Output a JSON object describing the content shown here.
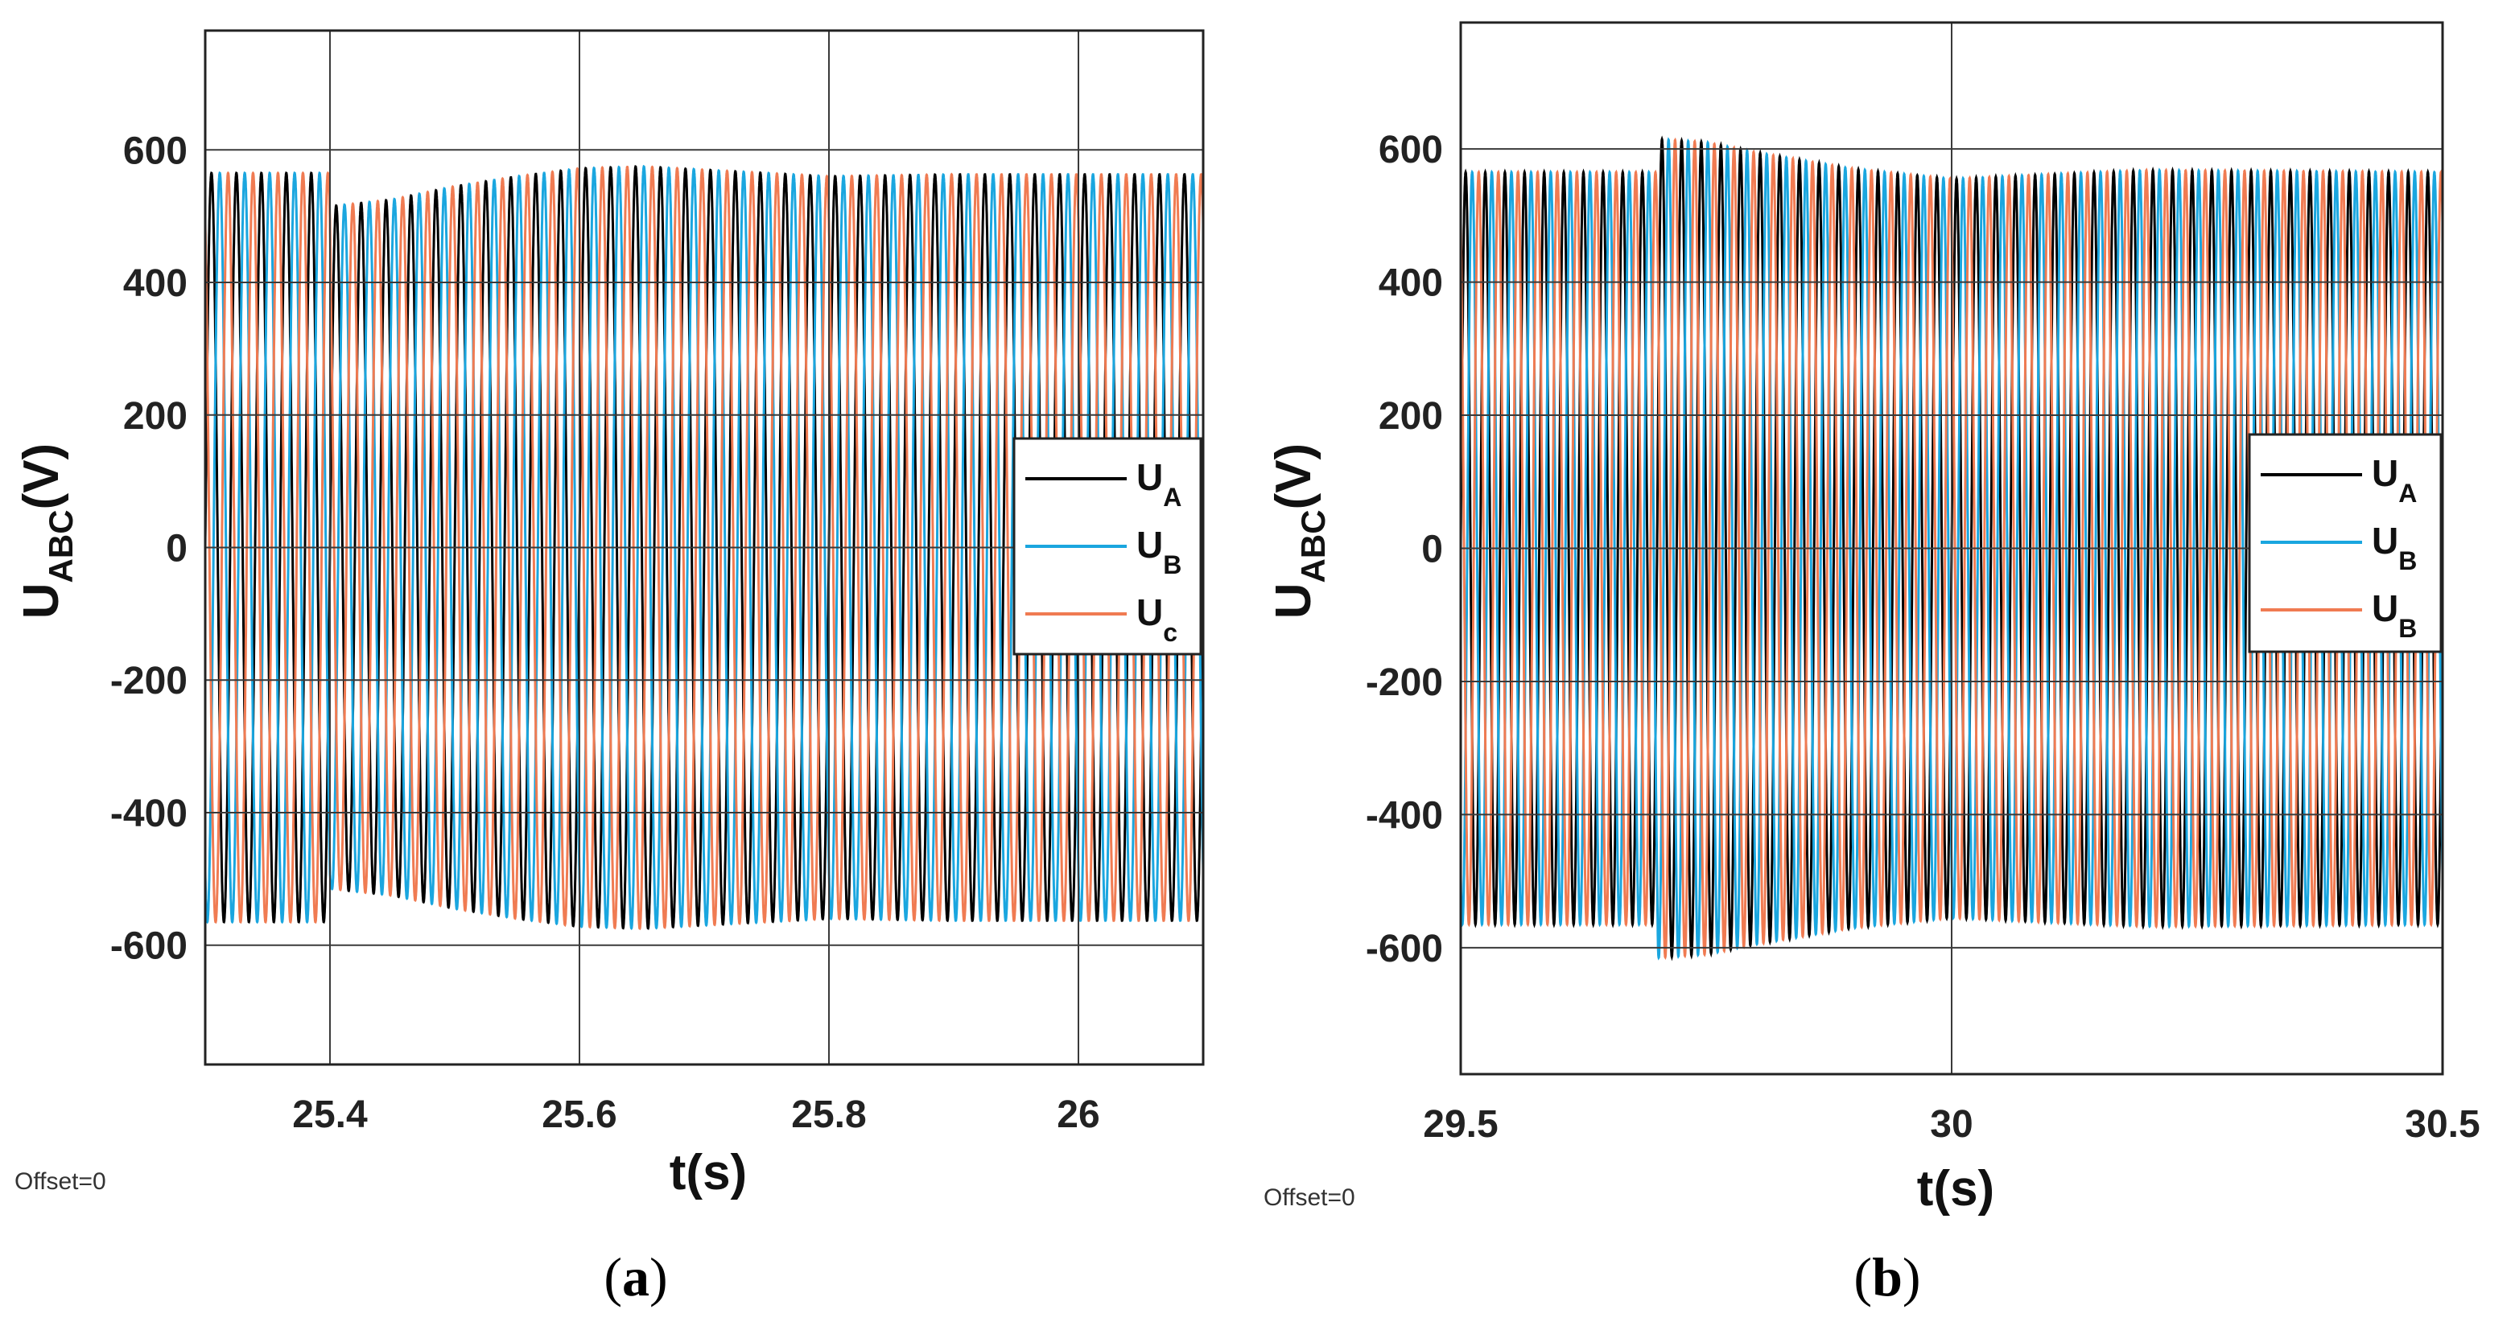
{
  "chart_data": [
    {
      "type": "line",
      "panel": "a",
      "title": "",
      "xlabel": "t(s)",
      "ylabel": "U",
      "ylabel_sub": "ABC",
      "ylabel_unit": "(V)",
      "xlim": [
        25.3,
        26.1
      ],
      "ylim": [
        -780,
        780
      ],
      "xticks": [
        25.4,
        25.6,
        25.8,
        26
      ],
      "xtick_labels": [
        "25.4",
        "25.6",
        "25.8",
        "26"
      ],
      "yticks": [
        -600,
        -400,
        -200,
        0,
        200,
        400,
        600
      ],
      "ytick_labels": [
        "-600",
        "-400",
        "-200",
        "0",
        "200",
        "400",
        "600"
      ],
      "grid": true,
      "legend_position": "right-middle",
      "annotation": "Offset=0",
      "caption_letter": "a",
      "frequency_hz": 50,
      "amplitude_profile": {
        "t": [
          25.3,
          25.4,
          25.401,
          25.45,
          25.5,
          25.55,
          25.6,
          25.65,
          25.7,
          25.8,
          25.9,
          26.1
        ],
        "amp": [
          565,
          565,
          515,
          525,
          545,
          560,
          572,
          575,
          570,
          560,
          563,
          563
        ]
      },
      "series": [
        {
          "name": "U",
          "sub": "A",
          "color": "#000000",
          "phase_deg": 0
        },
        {
          "name": "U",
          "sub": "B",
          "color": "#1aa6df",
          "phase_deg": -120
        },
        {
          "name": "U",
          "sub": "c",
          "color": "#f07b52",
          "phase_deg": 120
        }
      ]
    },
    {
      "type": "line",
      "panel": "b",
      "title": "",
      "xlabel": "t(s)",
      "ylabel": "U",
      "ylabel_sub": "ABC",
      "ylabel_unit": "(V)",
      "xlim": [
        29.5,
        30.5
      ],
      "ylim": [
        -790,
        790
      ],
      "xticks": [
        29.5,
        30,
        30.5
      ],
      "xtick_labels": [
        "29.5",
        "30",
        "30.5"
      ],
      "yticks": [
        -600,
        -400,
        -200,
        0,
        200,
        400,
        600
      ],
      "ytick_labels": [
        "-600",
        "-400",
        "-200",
        "0",
        "200",
        "400",
        "600"
      ],
      "grid": true,
      "legend_position": "right-middle",
      "annotation": "Offset=0",
      "caption_letter": "b",
      "frequency_hz": 50,
      "amplitude_profile": {
        "t": [
          29.5,
          29.7,
          29.701,
          29.75,
          29.8,
          29.9,
          30.0,
          30.1,
          30.2,
          30.5
        ],
        "amp": [
          565,
          565,
          615,
          610,
          595,
          570,
          555,
          562,
          568,
          565
        ]
      },
      "series": [
        {
          "name": "U",
          "sub": "A",
          "color": "#000000",
          "phase_deg": 0
        },
        {
          "name": "U",
          "sub": "B",
          "color": "#1aa6df",
          "phase_deg": -120
        },
        {
          "name": "U",
          "sub": "B",
          "color": "#f07b52",
          "phase_deg": 120
        }
      ]
    }
  ]
}
